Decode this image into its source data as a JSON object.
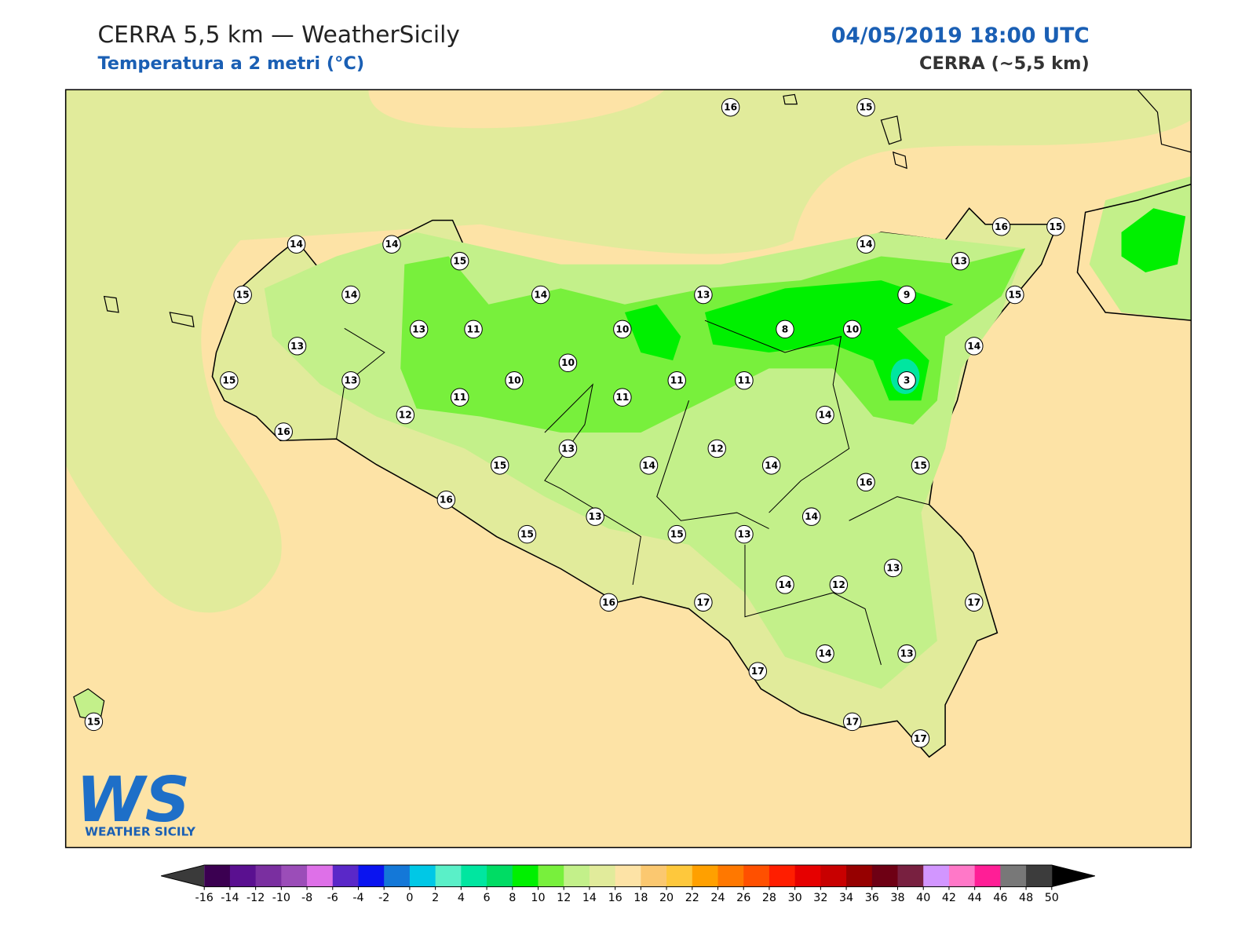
{
  "header": {
    "title": "CERRA 5,5 km — WeatherSicily",
    "subtitle": "Temperatura a 2 metri (°C)",
    "date": "04/05/2019 18:00 UTC",
    "model": "CERRA (~5,5 km)"
  },
  "stations": [
    16,
    15,
    14,
    14,
    15,
    14,
    16,
    15,
    13,
    15,
    14,
    14,
    13,
    9,
    15,
    13,
    11,
    10,
    8,
    10,
    13,
    14,
    10,
    15,
    13,
    10,
    11,
    11,
    3,
    11,
    11,
    12,
    14,
    16,
    13,
    12,
    15,
    14,
    14,
    15,
    16,
    16,
    13,
    14,
    15,
    15,
    13,
    13,
    14,
    12,
    16,
    17,
    17,
    14,
    13,
    17,
    15,
    17,
    17
  ],
  "colorbar": {
    "ticks": [
      -16,
      -14,
      -12,
      -10,
      -8,
      -6,
      -4,
      -2,
      0,
      2,
      4,
      6,
      8,
      10,
      12,
      14,
      16,
      18,
      20,
      22,
      24,
      26,
      28,
      30,
      32,
      34,
      36,
      38,
      40,
      42,
      44,
      46,
      48,
      50
    ],
    "colors": [
      "#3b0051",
      "#5a1090",
      "#7a2fa0",
      "#9b4db8",
      "#de70e8",
      "#5a28c8",
      "#0a14f0",
      "#1478d8",
      "#00c8e6",
      "#5af0c8",
      "#00e6a0",
      "#00dc64",
      "#00f000",
      "#78f03c",
      "#c3f08a",
      "#e1eb9b",
      "#fde3a6",
      "#fbc870",
      "#fec83c",
      "#ffa000",
      "#ff7800",
      "#ff5000",
      "#ff1e00",
      "#e60000",
      "#c80000",
      "#960000",
      "#6e0014",
      "#782040",
      "#d296ff",
      "#ff78c8",
      "#ff1e96",
      "#787878",
      "#3c3c3c"
    ],
    "under": "#3a3a3a",
    "over": "#000000"
  },
  "logo": {
    "mark": "WS",
    "text": "WEATHER SICILY"
  }
}
